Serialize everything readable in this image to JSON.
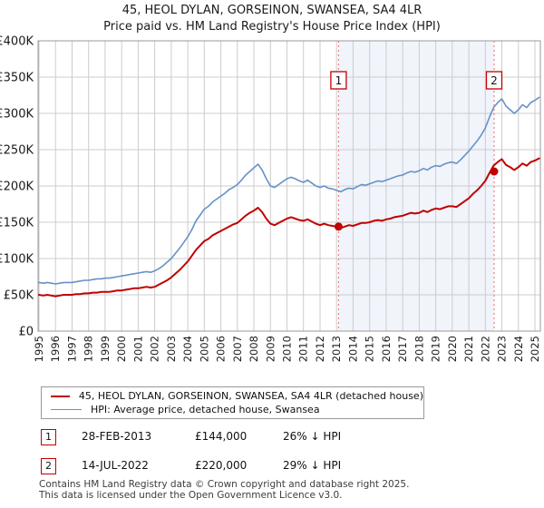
{
  "title": "45, HEOL DYLAN, GORSEINON, SWANSEA, SA4 4LR",
  "subtitle": "Price paid vs. HM Land Registry's House Price Index (HPI)",
  "legend": {
    "items": [
      {
        "label": "45, HEOL DYLAN, GORSEINON, SWANSEA, SA4 4LR (detached house)"
      },
      {
        "label": "HPI: Average price, detached house, Swansea"
      }
    ]
  },
  "annotations": {
    "rows": [
      {
        "num": "1",
        "date": "28-FEB-2013",
        "price": "£144,000",
        "hpi": "26% ↓ HPI"
      },
      {
        "num": "2",
        "date": "14-JUL-2022",
        "price": "£220,000",
        "hpi": "29% ↓ HPI"
      }
    ]
  },
  "footer": {
    "line1": "Contains HM Land Registry data © Crown copyright and database right 2025.",
    "line2": "This data is licensed under the Open Government Licence v3.0."
  },
  "chart_data": {
    "type": "line",
    "title": "45, HEOL DYLAN, GORSEINON, SWANSEA, SA4 4LR",
    "subtitle": "Price paid vs. HM Land Registry's House Price Index (HPI)",
    "xlabel": "",
    "ylabel": "",
    "units": "GBP (values in thousands)",
    "x_start": 1995,
    "x_step": 0.25,
    "x_ticks": [
      1995,
      1996,
      1997,
      1998,
      1999,
      2000,
      2001,
      2002,
      2003,
      2004,
      2005,
      2006,
      2007,
      2008,
      2009,
      2010,
      2011,
      2012,
      2013,
      2014,
      2015,
      2016,
      2017,
      2018,
      2019,
      2020,
      2021,
      2022,
      2023,
      2024,
      2025
    ],
    "y_ticks": [
      {
        "value": 0,
        "label": "£0"
      },
      {
        "value": 50,
        "label": "£50K"
      },
      {
        "value": 100,
        "label": "£100K"
      },
      {
        "value": 150,
        "label": "£150K"
      },
      {
        "value": 200,
        "label": "£200K"
      },
      {
        "value": 250,
        "label": "£250K"
      },
      {
        "value": 300,
        "label": "£300K"
      },
      {
        "value": 350,
        "label": "£350K"
      },
      {
        "value": 400,
        "label": "£400K"
      }
    ],
    "ylim": [
      0,
      400
    ],
    "grid": true,
    "band": {
      "from": 2013.12,
      "to": 2022.53,
      "color": "#f1f4fb"
    },
    "marker_line_color": "#f08080",
    "series": [
      {
        "name": "45, HEOL DYLAN, GORSEINON, SWANSEA, SA4 4LR (detached house)",
        "color": "#c00000",
        "width": 2,
        "values": [
          50,
          49,
          50,
          49,
          48,
          49,
          50,
          50,
          50,
          51,
          51,
          52,
          52,
          53,
          53,
          54,
          54,
          54,
          55,
          56,
          56,
          57,
          58,
          59,
          59,
          60,
          61,
          60,
          61,
          64,
          67,
          70,
          74,
          79,
          84,
          90,
          96,
          104,
          112,
          118,
          124,
          127,
          132,
          135,
          138,
          141,
          144,
          147,
          149,
          154,
          159,
          163,
          166,
          170,
          164,
          155,
          148,
          146,
          149,
          152,
          155,
          157,
          155,
          153,
          152,
          154,
          151,
          148,
          146,
          148,
          146,
          145,
          144,
          142,
          144,
          146,
          145,
          147,
          149,
          149,
          150,
          152,
          153,
          152,
          154,
          155,
          157,
          158,
          159,
          161,
          163,
          162,
          163,
          166,
          164,
          167,
          169,
          168,
          170,
          172,
          172,
          171,
          175,
          179,
          183,
          189,
          194,
          200,
          207,
          218,
          228,
          233,
          237,
          229,
          226,
          222,
          226,
          231,
          228,
          233,
          235,
          238
        ]
      },
      {
        "name": "HPI: Average price, detached house, Swansea",
        "color": "#6692c8",
        "width": 1.6,
        "values": [
          67,
          66,
          67,
          66,
          65,
          66,
          67,
          67,
          67,
          68,
          69,
          70,
          70,
          71,
          72,
          72,
          73,
          73,
          74,
          75,
          76,
          77,
          78,
          79,
          80,
          81,
          82,
          81,
          83,
          86,
          90,
          95,
          100,
          107,
          114,
          122,
          130,
          140,
          152,
          160,
          168,
          172,
          178,
          182,
          186,
          190,
          195,
          198,
          202,
          208,
          215,
          220,
          225,
          230,
          222,
          210,
          200,
          198,
          202,
          206,
          210,
          212,
          210,
          207,
          205,
          208,
          204,
          200,
          198,
          200,
          197,
          196,
          194,
          192,
          195,
          197,
          196,
          199,
          202,
          201,
          203,
          205,
          207,
          206,
          208,
          210,
          212,
          214,
          215,
          218,
          220,
          219,
          221,
          224,
          222,
          226,
          228,
          227,
          230,
          232,
          233,
          231,
          236,
          242,
          248,
          255,
          262,
          270,
          280,
          295,
          308,
          315,
          320,
          310,
          305,
          300,
          305,
          312,
          308,
          315,
          318,
          322
        ]
      }
    ],
    "markers": [
      {
        "label": "1",
        "x": 2013.12,
        "value": 144
      },
      {
        "label": "2",
        "x": 2022.53,
        "value": 220
      }
    ]
  }
}
